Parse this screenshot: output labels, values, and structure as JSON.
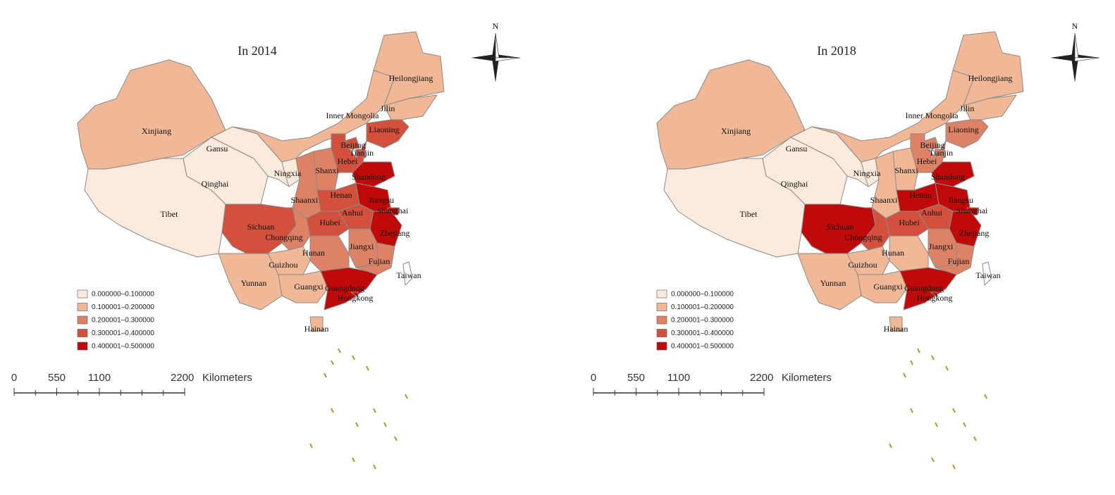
{
  "maps": [
    {
      "title": "In 2014",
      "provinces": [
        {
          "label": "Xinjiang",
          "class": 1
        },
        {
          "label": "Tibet",
          "class": 0
        },
        {
          "label": "Qinghai",
          "class": 0
        },
        {
          "label": "Gansu",
          "class": 0
        },
        {
          "label": "Inner Mongolia",
          "class": 1
        },
        {
          "label": "Heilongjiang",
          "class": 1
        },
        {
          "label": "Jilin",
          "class": 1
        },
        {
          "label": "Liaoning",
          "class": 3
        },
        {
          "label": "Beijing",
          "class": 3
        },
        {
          "label": "Tianjin",
          "class": 3
        },
        {
          "label": "Hebei",
          "class": 3
        },
        {
          "label": "Shanxi",
          "class": 2
        },
        {
          "label": "Shandong",
          "class": 4
        },
        {
          "label": "Ningxia",
          "class": 0
        },
        {
          "label": "Shaanxi",
          "class": 2
        },
        {
          "label": "Henan",
          "class": 3
        },
        {
          "label": "Jiangsu",
          "class": 4
        },
        {
          "label": "Shanghai",
          "class": 4
        },
        {
          "label": "Anhui",
          "class": 3
        },
        {
          "label": "Hubei",
          "class": 3
        },
        {
          "label": "Sichuan",
          "class": 3
        },
        {
          "label": "Chongqing",
          "class": 2
        },
        {
          "label": "Zhejiang",
          "class": 4
        },
        {
          "label": "Jiangxi",
          "class": 2
        },
        {
          "label": "Hunan",
          "class": 2
        },
        {
          "label": "Guizhou",
          "class": 1
        },
        {
          "label": "Fujian",
          "class": 2
        },
        {
          "label": "Taiwan",
          "class": null
        },
        {
          "label": "Yunnan",
          "class": 1
        },
        {
          "label": "Guangxi",
          "class": 1
        },
        {
          "label": "Guangdong",
          "class": 4
        },
        {
          "label": "Hongkong",
          "class": 4
        },
        {
          "label": "Hainan",
          "class": 1
        }
      ]
    },
    {
      "title": "In 2018",
      "provinces": [
        {
          "label": "Xinjiang",
          "class": 1
        },
        {
          "label": "Tibet",
          "class": 0
        },
        {
          "label": "Qinghai",
          "class": 0
        },
        {
          "label": "Gansu",
          "class": 0
        },
        {
          "label": "Inner Mongolia",
          "class": 1
        },
        {
          "label": "Heilongjiang",
          "class": 1
        },
        {
          "label": "Jilin",
          "class": 1
        },
        {
          "label": "Liaoning",
          "class": 2
        },
        {
          "label": "Beijing",
          "class": 2
        },
        {
          "label": "Tianjin",
          "class": 2
        },
        {
          "label": "Hebei",
          "class": 2
        },
        {
          "label": "Shanxi",
          "class": 1
        },
        {
          "label": "Shandong",
          "class": 4
        },
        {
          "label": "Ningxia",
          "class": 0
        },
        {
          "label": "Shaanxi",
          "class": 1
        },
        {
          "label": "Henan",
          "class": 4
        },
        {
          "label": "Jiangsu",
          "class": 4
        },
        {
          "label": "Shanghai",
          "class": 4
        },
        {
          "label": "Anhui",
          "class": 3
        },
        {
          "label": "Hubei",
          "class": 3
        },
        {
          "label": "Sichuan",
          "class": 4
        },
        {
          "label": "Chongqing",
          "class": 3
        },
        {
          "label": "Zhejiang",
          "class": 4
        },
        {
          "label": "Jiangxi",
          "class": 2
        },
        {
          "label": "Hunan",
          "class": 1
        },
        {
          "label": "Guizhou",
          "class": 1
        },
        {
          "label": "Fujian",
          "class": 2
        },
        {
          "label": "Taiwan",
          "class": null
        },
        {
          "label": "Yunnan",
          "class": 1
        },
        {
          "label": "Guangxi",
          "class": 1
        },
        {
          "label": "Guangdong",
          "class": 4
        },
        {
          "label": "Hongkong",
          "class": 4
        },
        {
          "label": "Hainan",
          "class": 1
        }
      ]
    }
  ],
  "legend": [
    {
      "label": "0.000000–0.100000",
      "color": "#fcebdc"
    },
    {
      "label": "0.100001–0.200000",
      "color": "#f0b896"
    },
    {
      "label": "0.200001–0.300000",
      "color": "#de8266"
    },
    {
      "label": "0.300001–0.400000",
      "color": "#d2503c"
    },
    {
      "label": "0.400001–0.500000",
      "color": "#c00a0a"
    }
  ],
  "scale": {
    "ticks": [
      0,
      550,
      1100,
      2200
    ],
    "unit": "Kilometers"
  },
  "compass": "N"
}
